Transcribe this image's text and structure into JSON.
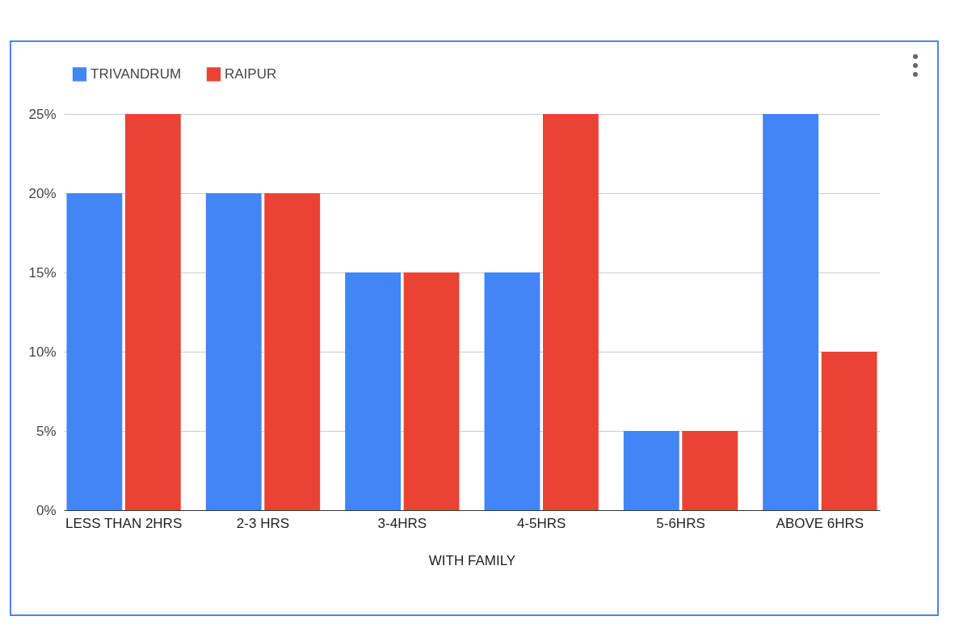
{
  "chart_data": {
    "type": "bar",
    "xlabel": "WITH FAMILY",
    "categories": [
      "LESS THAN 2HRS",
      "2-3 HRS",
      "3-4HRS",
      "4-5HRS",
      "5-6HRS",
      "ABOVE 6HRS"
    ],
    "series": [
      {
        "name": "TRIVANDRUM",
        "color": "#4285f4",
        "values": [
          20,
          20,
          15,
          15,
          5,
          25
        ]
      },
      {
        "name": "RAIPUR",
        "color": "#ea4335",
        "values": [
          25,
          20,
          15,
          25,
          5,
          10
        ]
      }
    ],
    "ylim": [
      0,
      25
    ],
    "yticks": [
      {
        "value": 0,
        "label": "0%"
      },
      {
        "value": 5,
        "label": "5%"
      },
      {
        "value": 10,
        "label": "10%"
      },
      {
        "value": 15,
        "label": "15%"
      },
      {
        "value": 20,
        "label": "20%"
      },
      {
        "value": 25,
        "label": "25%"
      }
    ],
    "grid": "y",
    "legend": "top"
  }
}
